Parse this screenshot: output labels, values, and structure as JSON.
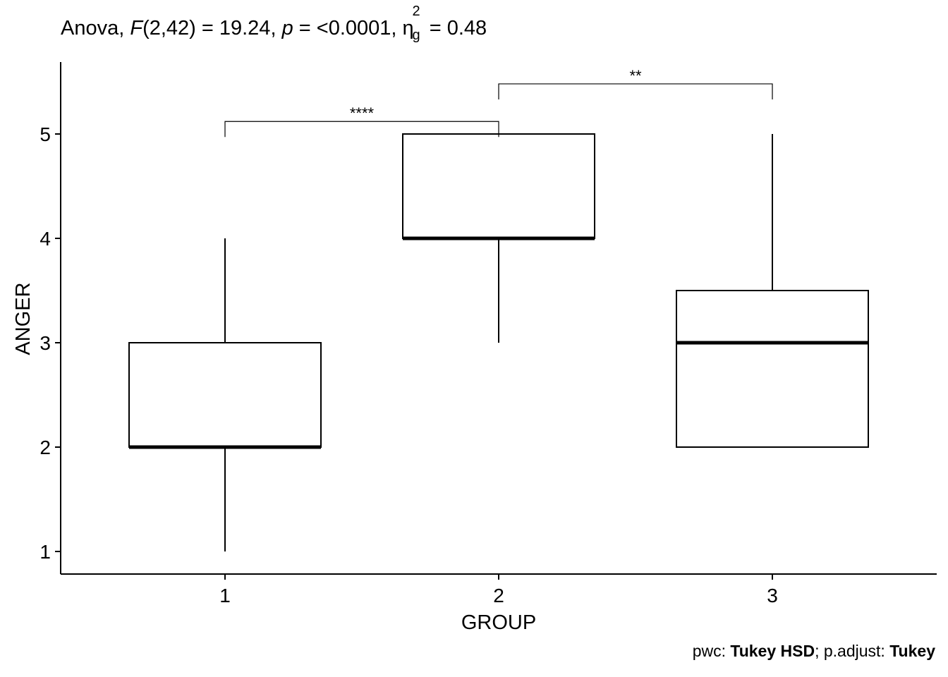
{
  "chart_data": {
    "type": "boxplot",
    "title_parts": {
      "prefix": "Anova, ",
      "f_letter": "F",
      "f_args": "(2,42) = 19.24, ",
      "p_letter": "p",
      "p_text": " = <0.0001, ",
      "eta_symbol": "η",
      "eta_sup": "2",
      "eta_sub": "g",
      "eta_text": " = 0.48"
    },
    "xlabel": "GROUP",
    "ylabel": "ANGER",
    "categories": [
      "1",
      "2",
      "3"
    ],
    "yticks": [
      1,
      2,
      3,
      4,
      5
    ],
    "ylim": [
      0.8,
      5.7
    ],
    "boxes": [
      {
        "category": "1",
        "min": 1,
        "q1": 2,
        "median": 2,
        "q3": 3,
        "max": 4
      },
      {
        "category": "2",
        "min": 3,
        "q1": 4,
        "median": 4,
        "q3": 5,
        "max": 5
      },
      {
        "category": "3",
        "min": 2,
        "q1": 2,
        "median": 3,
        "q3": 3.5,
        "max": 5
      }
    ],
    "comparisons": [
      {
        "group1": "1",
        "group2": "2",
        "y": 5.12,
        "label": "****"
      },
      {
        "group1": "2",
        "group2": "3",
        "y": 5.48,
        "label": "**"
      }
    ],
    "caption": {
      "pwc_label": "pwc: ",
      "pwc_value": "Tukey HSD",
      "sep": "; p.adjust: ",
      "adjust_value": "Tukey"
    }
  }
}
